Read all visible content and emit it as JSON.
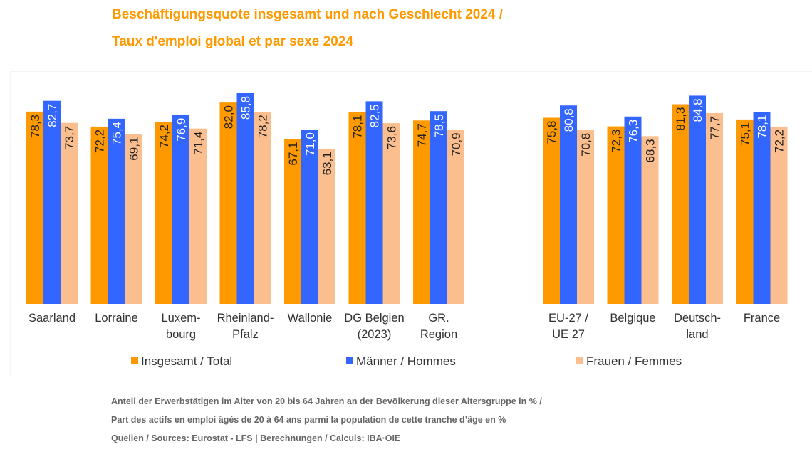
{
  "chart_data": {
    "type": "bar",
    "title": "Beschäftigungsquote insgesamt und nach Geschlecht 2024 /",
    "subtitle": "Taux d'emploi global et par sexe 2024",
    "xlabel": "",
    "ylabel": "",
    "ylim": [
      0,
      100
    ],
    "grid": false,
    "legend_position": "bottom",
    "categories": [
      [
        "Saarland"
      ],
      [
        "Lorraine"
      ],
      [
        "Luxem-",
        "bourg"
      ],
      [
        "Rheinland-",
        "Pfalz"
      ],
      [
        "Wallonie"
      ],
      [
        "DG Belgien",
        "(2023)"
      ],
      [
        "GR.",
        "Region"
      ],
      [
        "EU-27 /",
        "UE 27"
      ],
      [
        "Belgique"
      ],
      [
        "Deutsch-",
        "land"
      ],
      [
        "France"
      ]
    ],
    "series": [
      {
        "name": "Insgesamt / Total",
        "color": "#FF9900",
        "label_color": "#222222",
        "values": [
          78.3,
          72.2,
          74.2,
          82.0,
          67.1,
          78.1,
          74.7,
          75.8,
          72.3,
          81.3,
          75.1
        ],
        "labels": [
          "78,3",
          "72,2",
          "74,2",
          "82,0",
          "67,1",
          "78,1",
          "74,7",
          "75,8",
          "72,3",
          "81,3",
          "75,1"
        ]
      },
      {
        "name": "Männer / Hommes",
        "color": "#3366FF",
        "label_color": "#ffffff",
        "values": [
          82.7,
          75.4,
          76.9,
          85.8,
          71.0,
          82.5,
          78.5,
          80.8,
          76.3,
          84.8,
          78.1
        ],
        "labels": [
          "82,7",
          "75,4",
          "76,9",
          "85,8",
          "71,0",
          "82,5",
          "78,5",
          "80,8",
          "76,3",
          "84,8",
          "78,1"
        ]
      },
      {
        "name": "Frauen / Femmes",
        "color": "#FBBE8E",
        "label_color": "#222222",
        "values": [
          73.7,
          69.1,
          71.4,
          78.2,
          63.1,
          73.6,
          70.9,
          70.8,
          68.3,
          77.7,
          72.2
        ],
        "labels": [
          "73,7",
          "69,1",
          "71,4",
          "78,2",
          "63,1",
          "73,6",
          "70,9",
          "70,8",
          "68,3",
          "77,7",
          "72,2"
        ]
      }
    ]
  },
  "footnotes": {
    "line1": "Anteil der Erwerbstätigen im Alter von 20 bis 64 Jahren an der Bevölkerung dieser Altersgruppe in % /",
    "line2": "Part des actifs en emploi âgés de 20 à 64 ans parmi la population de cette tranche d’âge en %",
    "line3": "Quellen / Sources: Eurostat - LFS | Berechnungen / Calculs: IBA·OIE"
  }
}
